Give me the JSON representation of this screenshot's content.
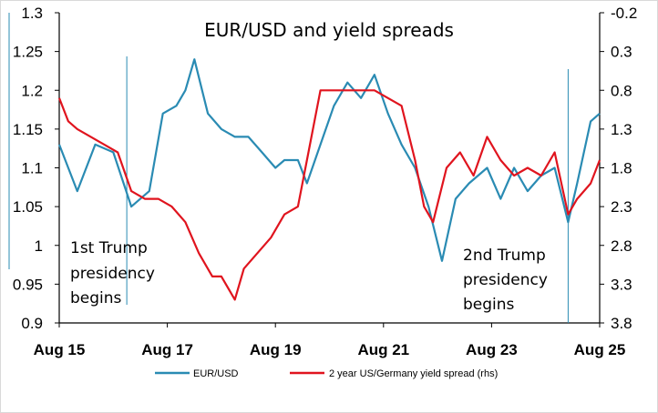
{
  "chart_data": {
    "type": "line",
    "title": "EUR/USD and yield spreads",
    "x_tick_labels": [
      "Aug 15",
      "Aug 17",
      "Aug 19",
      "Aug 21",
      "Aug 23",
      "Aug 25"
    ],
    "left_axis": {
      "ylim": [
        0.9,
        1.3
      ],
      "ticks": [
        "1.3",
        "1.25",
        "1.2",
        "1.15",
        "1.1",
        "1.05",
        "1",
        "0.95",
        "0.9"
      ]
    },
    "right_axis": {
      "ylim": [
        -0.2,
        3.8
      ],
      "inverted": true,
      "ticks": [
        "-0.2",
        "0.3",
        "0.8",
        "1.3",
        "1.8",
        "2.3",
        "2.8",
        "3.3",
        "3.8"
      ]
    },
    "annotations": [
      {
        "lines": [
          "1st Trump",
          "presidency",
          "begins"
        ],
        "date": "Nov 16"
      },
      {
        "lines": [
          "2nd Trump",
          "presidency",
          "begins"
        ],
        "date": "Jan 25"
      }
    ],
    "series": [
      {
        "name": "EUR/USD",
        "axis": "left",
        "color": "#2a8bb3",
        "x": [
          "Aug 15",
          "Dec 15",
          "Apr 16",
          "Aug 16",
          "Dec 16",
          "Apr 17",
          "Jul 17",
          "Oct 17",
          "Dec 17",
          "Feb 18",
          "May 18",
          "Aug 18",
          "Nov 18",
          "Feb 19",
          "May 19",
          "Aug 19",
          "Oct 19",
          "Jan 20",
          "Mar 20",
          "Jun 20",
          "Sep 20",
          "Dec 20",
          "Mar 21",
          "Jun 21",
          "Sep 21",
          "Dec 21",
          "Mar 22",
          "Jun 22",
          "Sep 22",
          "Dec 22",
          "Mar 23",
          "Jul 23",
          "Oct 23",
          "Jan 24",
          "Apr 24",
          "Jul 24",
          "Oct 24",
          "Jan 25",
          "Mar 25",
          "Jun 25",
          "Aug 25"
        ],
        "y": [
          1.13,
          1.07,
          1.13,
          1.12,
          1.05,
          1.07,
          1.17,
          1.18,
          1.2,
          1.24,
          1.17,
          1.15,
          1.14,
          1.14,
          1.12,
          1.1,
          1.11,
          1.11,
          1.08,
          1.13,
          1.18,
          1.21,
          1.19,
          1.22,
          1.17,
          1.13,
          1.1,
          1.05,
          0.98,
          1.06,
          1.08,
          1.1,
          1.06,
          1.1,
          1.07,
          1.09,
          1.1,
          1.03,
          1.08,
          1.16,
          1.17
        ]
      },
      {
        "name": "2 year US/Germany yield spread (rhs)",
        "axis": "right",
        "color": "#e0141e",
        "x": [
          "Aug 15",
          "Oct 15",
          "Dec 15",
          "Mar 16",
          "Jun 16",
          "Sep 16",
          "Dec 16",
          "Mar 17",
          "Jun 17",
          "Sep 17",
          "Dec 17",
          "Mar 18",
          "Jun 18",
          "Aug 18",
          "Nov 18",
          "Jan 19",
          "Apr 19",
          "Jul 19",
          "Oct 19",
          "Jan 20",
          "Mar 20",
          "Jun 20",
          "Sep 20",
          "Dec 20",
          "Mar 21",
          "Jun 21",
          "Sep 21",
          "Dec 21",
          "Mar 22",
          "May 22",
          "Jul 22",
          "Oct 22",
          "Jan 23",
          "Apr 23",
          "Jul 23",
          "Oct 23",
          "Jan 24",
          "Apr 24",
          "Jul 24",
          "Oct 24",
          "Jan 25",
          "Mar 25",
          "Jun 25",
          "Aug 25"
        ],
        "y": [
          0.9,
          1.2,
          1.3,
          1.4,
          1.5,
          1.6,
          2.1,
          2.2,
          2.2,
          2.3,
          2.5,
          2.9,
          3.2,
          3.2,
          3.5,
          3.1,
          2.9,
          2.7,
          2.4,
          2.3,
          1.7,
          0.8,
          0.8,
          0.8,
          0.8,
          0.8,
          0.9,
          1.0,
          1.7,
          2.3,
          2.5,
          1.8,
          1.6,
          1.9,
          1.4,
          1.7,
          1.9,
          1.8,
          1.9,
          1.6,
          2.4,
          2.2,
          2.0,
          1.7
        ]
      }
    ],
    "legend_position": "bottom"
  }
}
